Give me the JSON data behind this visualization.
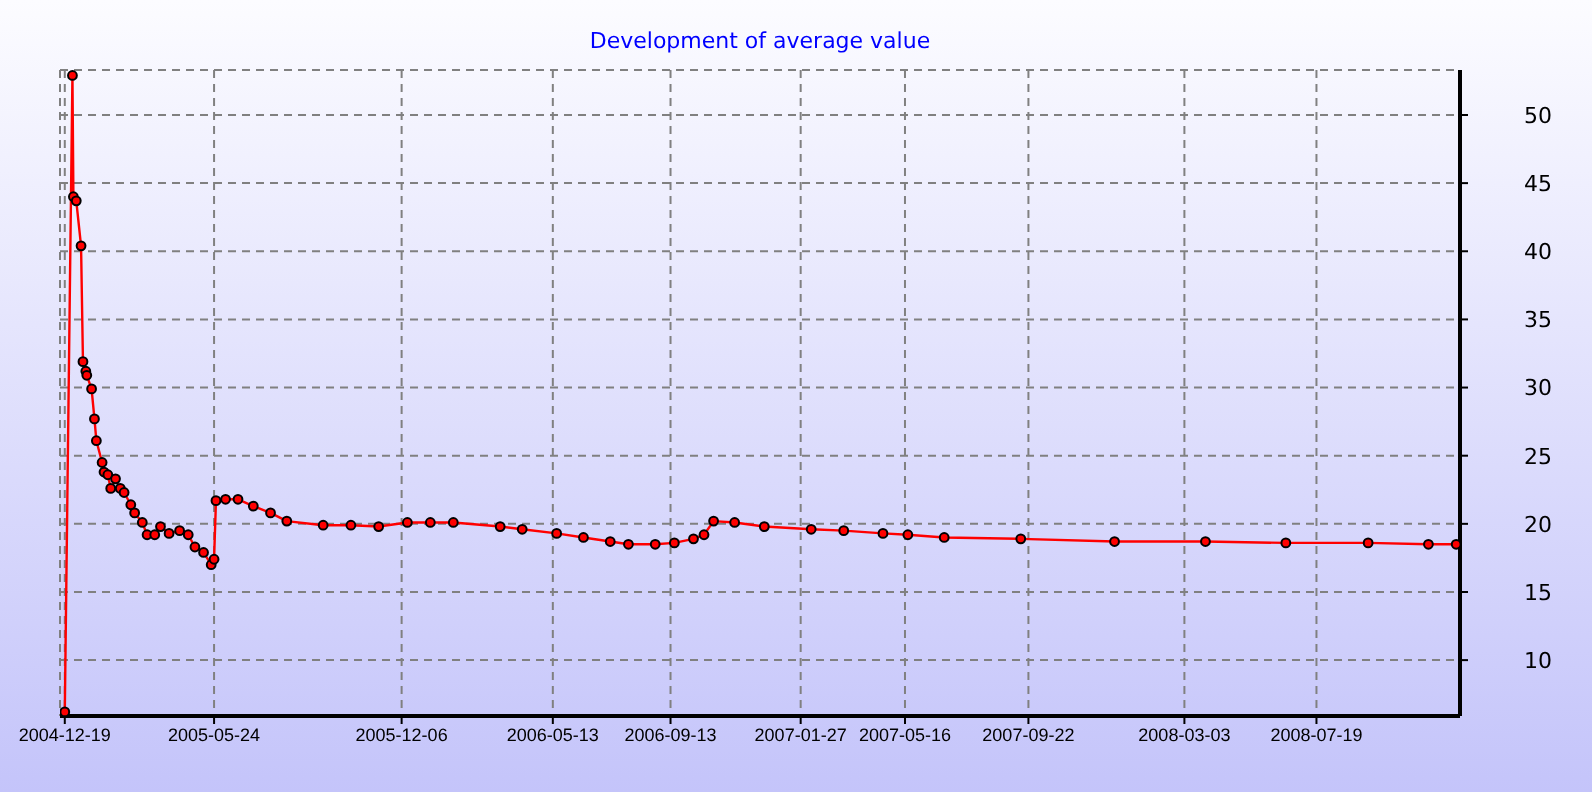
{
  "chart_data": {
    "type": "line",
    "title": "Development of average value",
    "x": [
      "2004-12-19",
      "2004-12-27",
      "2004-12-28",
      "2004-12-31",
      "2005-01-05",
      "2005-01-07",
      "2005-01-10",
      "2005-01-11",
      "2005-01-16",
      "2005-01-19",
      "2005-01-21",
      "2005-01-27",
      "2005-01-29",
      "2005-02-02",
      "2005-02-05",
      "2005-02-10",
      "2005-02-15",
      "2005-02-19",
      "2005-02-26",
      "2005-03-02",
      "2005-03-10",
      "2005-03-15",
      "2005-03-23",
      "2005-03-29",
      "2005-04-07",
      "2005-04-18",
      "2005-04-27",
      "2005-05-04",
      "2005-05-13",
      "2005-05-21",
      "2005-05-24",
      "2005-05-26",
      "2005-06-05",
      "2005-06-18",
      "2005-07-04",
      "2005-07-22",
      "2005-08-08",
      "2005-09-15",
      "2005-10-14",
      "2005-11-12",
      "2005-12-12",
      "2006-01-05",
      "2006-01-29",
      "2006-03-19",
      "2006-04-11",
      "2006-05-17",
      "2006-06-14",
      "2006-07-12",
      "2006-07-31",
      "2006-08-28",
      "2006-09-17",
      "2006-10-07",
      "2006-10-18",
      "2006-10-28",
      "2006-11-19",
      "2006-12-20",
      "2007-02-07",
      "2007-03-13",
      "2007-04-23",
      "2007-05-19",
      "2007-06-26",
      "2007-09-14",
      "2007-12-21",
      "2008-03-25",
      "2008-06-17",
      "2008-09-11",
      "2008-11-13",
      "2008-12-12"
    ],
    "series": [
      {
        "color": "#ff0000",
        "values": [
          6.2,
          52.9,
          44,
          43.7,
          40.4,
          31.9,
          31.2,
          30.9,
          29.9,
          27.7,
          26.1,
          24.5,
          23.8,
          23.6,
          22.6,
          23.3,
          22.6,
          22.3,
          21.4,
          20.8,
          20.1,
          19.2,
          19.2,
          19.8,
          19.3,
          19.5,
          19.2,
          18.3,
          17.9,
          17.0,
          17.4,
          21.7,
          21.8,
          21.8,
          21.3,
          20.8,
          20.2,
          19.9,
          19.9,
          19.8,
          20.1,
          20.1,
          20.1,
          19.8,
          19.6,
          19.3,
          19.0,
          18.7,
          18.5,
          18.5,
          18.6,
          18.9,
          19.2,
          20.2,
          20.1,
          19.8,
          19.6,
          19.5,
          19.3,
          19.2,
          19.0,
          18.9,
          18.7,
          18.7,
          18.6,
          18.6,
          18.5,
          18.5
        ]
      }
    ],
    "xlim": [
      "2004-12-14",
      "2008-12-16"
    ],
    "xticks": [
      "2004-12-19",
      "2005-05-24",
      "2005-12-06",
      "2006-05-13",
      "2006-09-13",
      "2007-01-27",
      "2007-05-16",
      "2007-09-22",
      "2008-03-03",
      "2008-07-19"
    ],
    "ylim": [
      5.9,
      53.3
    ],
    "yticks": [
      10,
      15,
      20,
      25,
      30,
      35,
      40,
      45,
      50
    ],
    "grid": true,
    "marker": "circle",
    "line_style": "solid"
  }
}
